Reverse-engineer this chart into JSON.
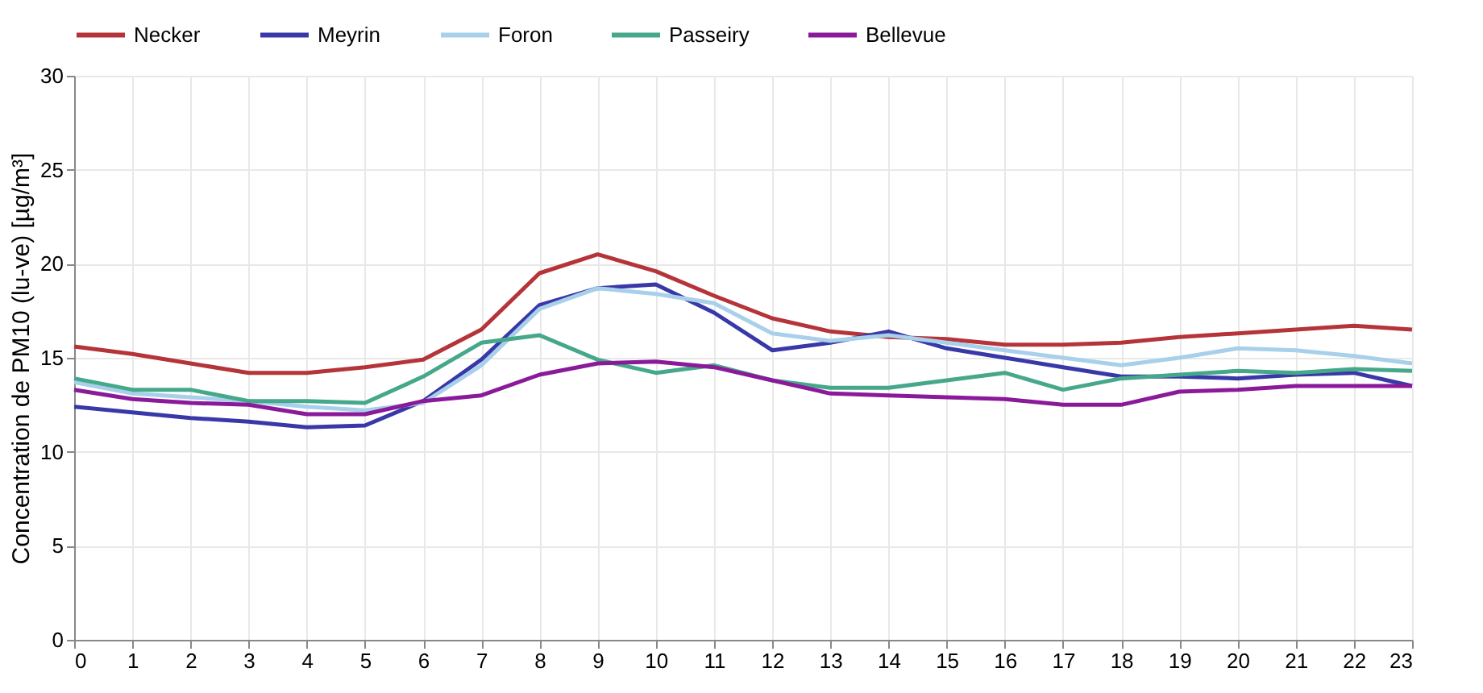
{
  "chart_data": {
    "type": "line",
    "ylabel": "Concentration de PM10 (lu-ve) [µg/m³]",
    "x": [
      0,
      1,
      2,
      3,
      4,
      5,
      6,
      7,
      8,
      9,
      10,
      11,
      12,
      13,
      14,
      15,
      16,
      17,
      18,
      19,
      20,
      21,
      22,
      23
    ],
    "xlim": [
      0,
      23
    ],
    "xticks": [
      0,
      1,
      2,
      3,
      4,
      5,
      6,
      7,
      8,
      9,
      10,
      11,
      12,
      13,
      14,
      15,
      16,
      17,
      18,
      19,
      20,
      21,
      22,
      23
    ],
    "ylim": [
      0,
      30
    ],
    "yticks": [
      0,
      5,
      10,
      15,
      20,
      25,
      30
    ],
    "grid": true,
    "legend": "top",
    "marker": "none",
    "series": [
      {
        "name": "Necker",
        "color": "#b5343a",
        "values": [
          15.6,
          15.2,
          14.7,
          14.2,
          14.2,
          14.5,
          14.9,
          16.5,
          19.5,
          20.5,
          19.6,
          18.3,
          17.1,
          16.4,
          16.1,
          16.0,
          15.7,
          15.7,
          15.8,
          16.1,
          16.3,
          16.5,
          16.7,
          16.5
        ]
      },
      {
        "name": "Meyrin",
        "color": "#3838a8",
        "values": [
          12.4,
          12.1,
          11.8,
          11.6,
          11.3,
          11.4,
          12.7,
          14.9,
          17.8,
          18.7,
          18.9,
          17.4,
          15.4,
          15.8,
          16.4,
          15.5,
          15.0,
          14.5,
          14.0,
          14.0,
          13.9,
          14.1,
          14.2,
          13.5
        ]
      },
      {
        "name": "Foron",
        "color": "#a8d0ea",
        "values": [
          13.7,
          13.1,
          12.9,
          12.7,
          12.4,
          12.2,
          12.6,
          14.6,
          17.6,
          18.7,
          18.4,
          17.9,
          16.3,
          15.9,
          16.2,
          15.8,
          15.4,
          15.0,
          14.6,
          15.0,
          15.5,
          15.4,
          15.1,
          14.7
        ]
      },
      {
        "name": "Passeiry",
        "color": "#45a88a",
        "values": [
          13.9,
          13.3,
          13.3,
          12.7,
          12.7,
          12.6,
          14.0,
          15.8,
          16.2,
          14.9,
          14.2,
          14.6,
          13.8,
          13.4,
          13.4,
          13.8,
          14.2,
          13.3,
          13.9,
          14.1,
          14.3,
          14.2,
          14.4,
          14.3
        ]
      },
      {
        "name": "Bellevue",
        "color": "#8a1a9a",
        "values": [
          13.3,
          12.8,
          12.6,
          12.5,
          12.0,
          12.0,
          12.7,
          13.0,
          14.1,
          14.7,
          14.8,
          14.5,
          13.8,
          13.1,
          13.0,
          12.9,
          12.8,
          12.5,
          12.5,
          13.2,
          13.3,
          13.5,
          13.5,
          13.5
        ]
      }
    ]
  }
}
